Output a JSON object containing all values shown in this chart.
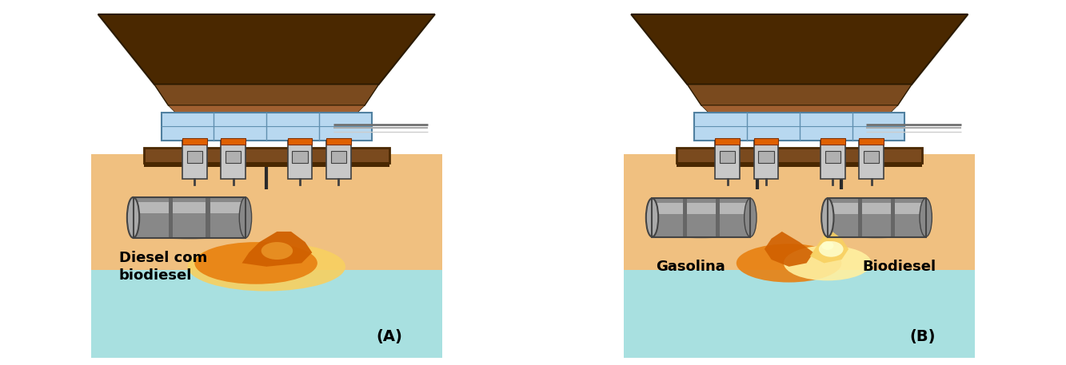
{
  "fig_width": 13.33,
  "fig_height": 4.57,
  "dpi": 100,
  "bg_color": "#ffffff",
  "border_color": "#2a2a2a",
  "label_A": "(A)",
  "label_B": "(B)",
  "text_left_line1": "Diesel com",
  "text_left_line2": "biodiesel",
  "text_right_left": "Gasolina",
  "text_right_right": "Biodiesel",
  "ground_color": "#F0C080",
  "water_color": "#A8E0E0",
  "sky_color": "#FFFFFF",
  "roof_dark": "#4A2800",
  "roof_mid": "#7A4A1E",
  "roof_light": "#A06030",
  "canopy_blue": "#B8D8F0",
  "canopy_border": "#5080A0",
  "canopy_frame": "#6090B0",
  "pump_gray": "#909090",
  "pump_light": "#C8C8C8",
  "pump_dark": "#404040",
  "pump_display": "#B0B0B0",
  "pump_orange": "#E06000",
  "platform_brown": "#7A4A1E",
  "platform_dark": "#4A2800",
  "tank_body": "#888888",
  "tank_light": "#AAAAAA",
  "tank_highlight": "#CCCCCC",
  "tank_dark": "#444444",
  "tank_rim": "#666666",
  "spill_orange_dark": "#D06000",
  "spill_orange": "#E88010",
  "spill_orange_light": "#F0A030",
  "spill_yellow": "#F8D060",
  "spill_pale": "#FFF0A0",
  "spill_white": "#FFFFD0",
  "pipe_color": "#2a2a2a",
  "hose_color": "#707070",
  "hose_light": "#AAAAAA",
  "hose_pale": "#CCCCCC"
}
